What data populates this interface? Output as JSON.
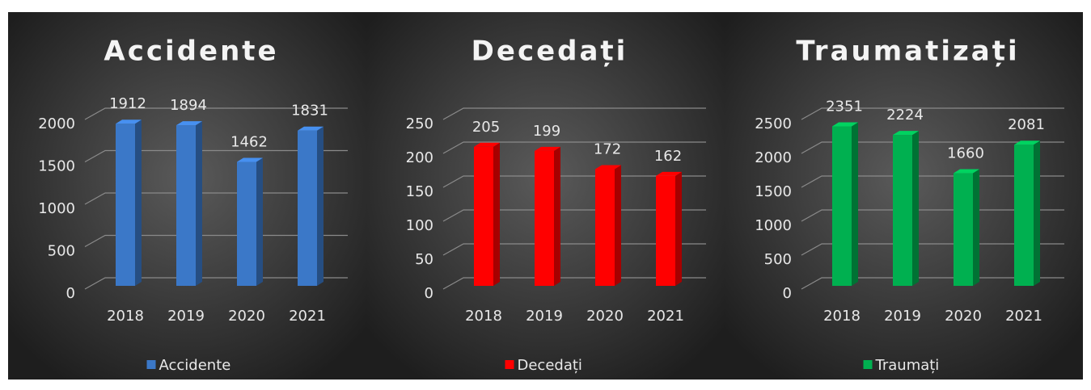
{
  "chart_data": [
    {
      "type": "bar",
      "title": "Accidente",
      "categories": [
        "2018",
        "2019",
        "2020",
        "2021"
      ],
      "series": [
        {
          "name": "Accidente",
          "color": "#3b78c8",
          "values": [
            1912,
            1894,
            1462,
            1831
          ]
        }
      ],
      "ylim": [
        0,
        2000
      ],
      "yticks": [
        0,
        500,
        1000,
        1500,
        2000
      ],
      "grid": true,
      "legend": "bottom"
    },
    {
      "type": "bar",
      "title": "Decedați",
      "categories": [
        "2018",
        "2019",
        "2020",
        "2021"
      ],
      "series": [
        {
          "name": "Decedați",
          "color": "#ff0000",
          "values": [
            205,
            199,
            172,
            162
          ]
        }
      ],
      "ylim": [
        0,
        250
      ],
      "yticks": [
        0,
        50,
        100,
        150,
        200,
        250
      ],
      "grid": true,
      "legend": "bottom"
    },
    {
      "type": "bar",
      "title": "Traumatizați",
      "categories": [
        "2018",
        "2019",
        "2020",
        "2021"
      ],
      "series": [
        {
          "name": "Traumați",
          "color": "#00b050",
          "values": [
            2351,
            2224,
            1660,
            2081
          ]
        }
      ],
      "ylim": [
        0,
        2500
      ],
      "yticks": [
        0,
        500,
        1000,
        1500,
        2000,
        2500
      ],
      "grid": true,
      "legend": "bottom"
    }
  ]
}
